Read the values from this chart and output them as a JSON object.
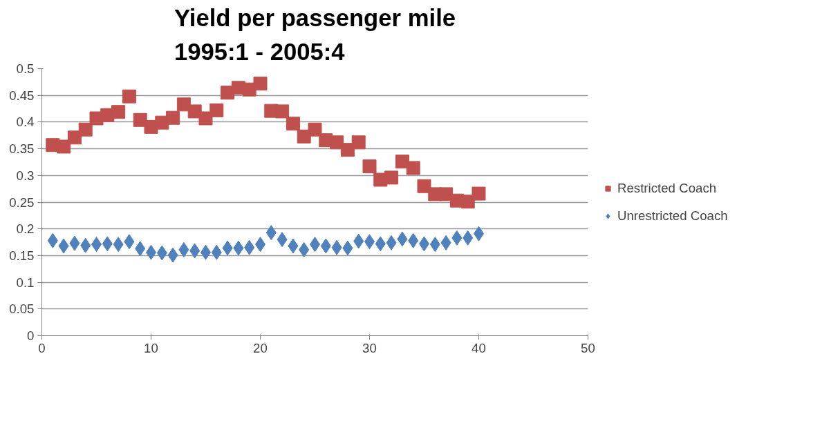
{
  "chart_data": {
    "type": "scatter",
    "title": "Yield per passenger mile\n1995:1 - 2005:4",
    "x": [
      1,
      2,
      3,
      4,
      5,
      6,
      7,
      8,
      9,
      10,
      11,
      12,
      13,
      14,
      15,
      16,
      17,
      18,
      19,
      20,
      21,
      22,
      23,
      24,
      25,
      26,
      27,
      28,
      29,
      30,
      31,
      32,
      33,
      34,
      35,
      36,
      37,
      38,
      39,
      40
    ],
    "series": [
      {
        "name": "Restricted Coach",
        "color": "#c0504d",
        "marker": "square",
        "values": [
          0.357,
          0.354,
          0.371,
          0.386,
          0.407,
          0.413,
          0.419,
          0.448,
          0.404,
          0.391,
          0.399,
          0.408,
          0.433,
          0.42,
          0.407,
          0.422,
          0.455,
          0.464,
          0.461,
          0.472,
          0.421,
          0.42,
          0.397,
          0.373,
          0.386,
          0.366,
          0.362,
          0.348,
          0.362,
          0.317,
          0.292,
          0.296,
          0.326,
          0.314,
          0.28,
          0.265,
          0.265,
          0.253,
          0.251,
          0.266
        ]
      },
      {
        "name": "Unrestricted Coach",
        "color": "#4f81bd",
        "marker": "diamond",
        "values": [
          0.178,
          0.168,
          0.173,
          0.169,
          0.171,
          0.172,
          0.171,
          0.176,
          0.163,
          0.156,
          0.155,
          0.151,
          0.161,
          0.159,
          0.156,
          0.156,
          0.164,
          0.164,
          0.165,
          0.171,
          0.193,
          0.18,
          0.168,
          0.161,
          0.171,
          0.168,
          0.165,
          0.164,
          0.177,
          0.176,
          0.172,
          0.174,
          0.181,
          0.178,
          0.172,
          0.171,
          0.174,
          0.183,
          0.183,
          0.191
        ]
      }
    ],
    "xlim": [
      0,
      50
    ],
    "xticks": [
      0,
      10,
      20,
      30,
      40,
      50
    ],
    "ylim": [
      0,
      0.5
    ],
    "yticks": [
      0,
      0.05,
      0.1,
      0.15,
      0.2,
      0.25,
      0.3,
      0.35,
      0.4,
      0.45,
      0.5
    ],
    "grid": "y",
    "legend": "right"
  }
}
